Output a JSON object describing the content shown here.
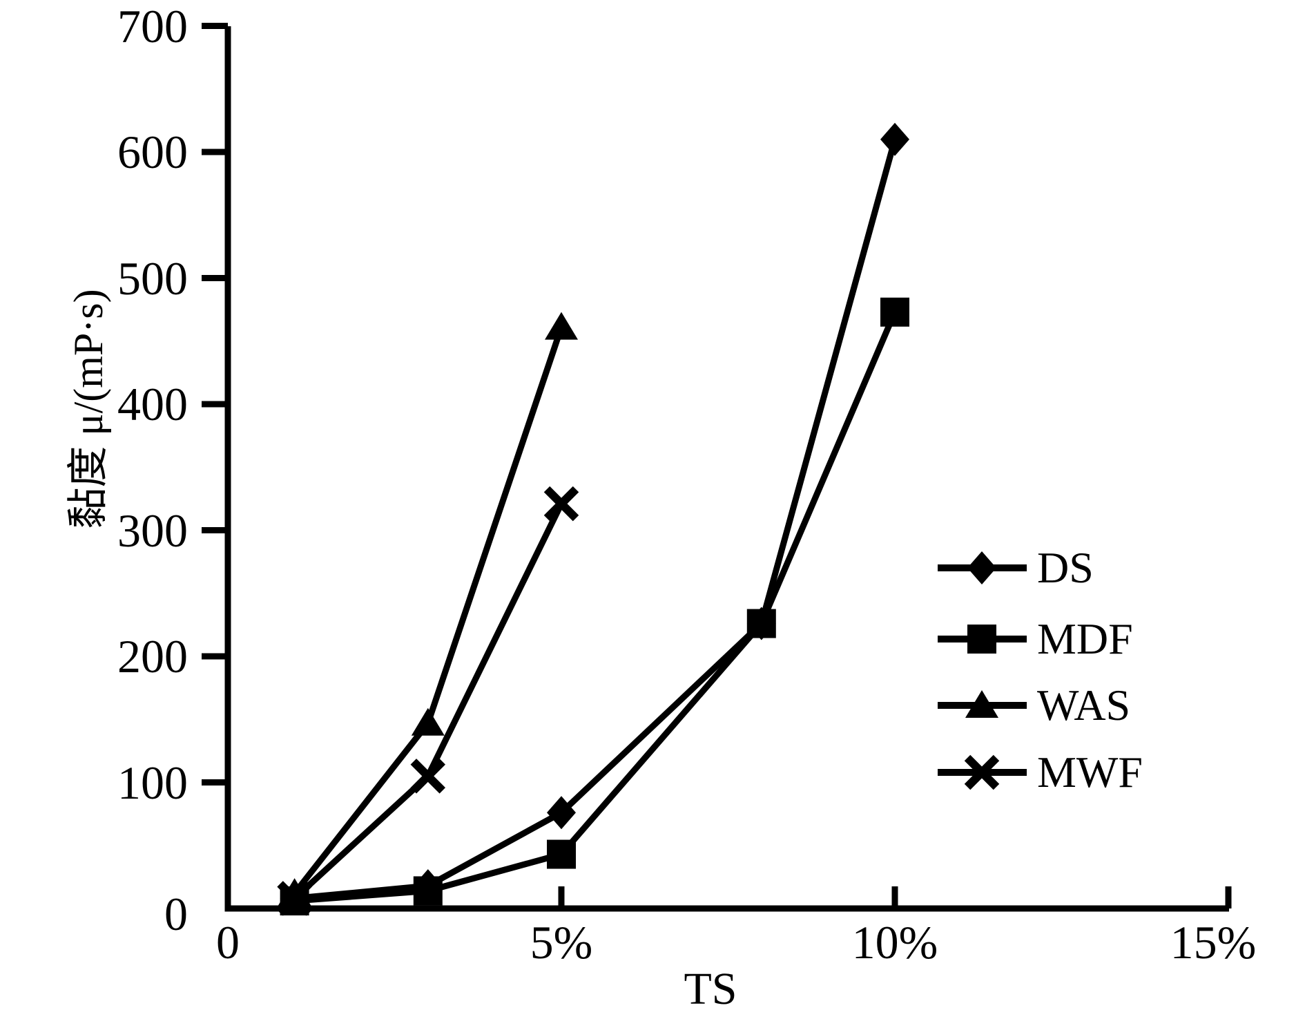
{
  "figure": {
    "background_color": "#ffffff",
    "ink_color": "#000000"
  },
  "chart_data": {
    "type": "line",
    "title": "",
    "xlabel": "TS",
    "ylabel": "黏度 μ/(mP·s)",
    "xlim_pct": [
      0,
      15
    ],
    "ylim": [
      0,
      700
    ],
    "grid": false,
    "legend_position": "right-middle",
    "x_ticks": [
      {
        "pct": 0,
        "label": "0"
      },
      {
        "pct": 5,
        "label": "5%"
      },
      {
        "pct": 10,
        "label": "10%"
      },
      {
        "pct": 15,
        "label": "15%"
      }
    ],
    "y_ticks": [
      {
        "value": 0,
        "label": "0"
      },
      {
        "value": 100,
        "label": "100"
      },
      {
        "value": 200,
        "label": "200"
      },
      {
        "value": 300,
        "label": "300"
      },
      {
        "value": 400,
        "label": "400"
      },
      {
        "value": 500,
        "label": "500"
      },
      {
        "value": 600,
        "label": "600"
      },
      {
        "value": 700,
        "label": "700"
      }
    ],
    "series": [
      {
        "name": "DS",
        "marker": "diamond",
        "points": [
          [
            1,
            8
          ],
          [
            3,
            18
          ],
          [
            5,
            76
          ],
          [
            8,
            226
          ],
          [
            10,
            610
          ]
        ]
      },
      {
        "name": "MDF",
        "marker": "square",
        "points": [
          [
            1,
            6
          ],
          [
            3,
            14
          ],
          [
            5,
            43
          ],
          [
            8,
            226
          ],
          [
            10,
            473
          ]
        ]
      },
      {
        "name": "WAS",
        "marker": "triangle",
        "points": [
          [
            1,
            12
          ],
          [
            3,
            147
          ],
          [
            5,
            461
          ]
        ]
      },
      {
        "name": "MWF",
        "marker": "x",
        "points": [
          [
            1,
            8
          ],
          [
            3,
            105
          ],
          [
            5,
            321
          ]
        ]
      }
    ]
  }
}
